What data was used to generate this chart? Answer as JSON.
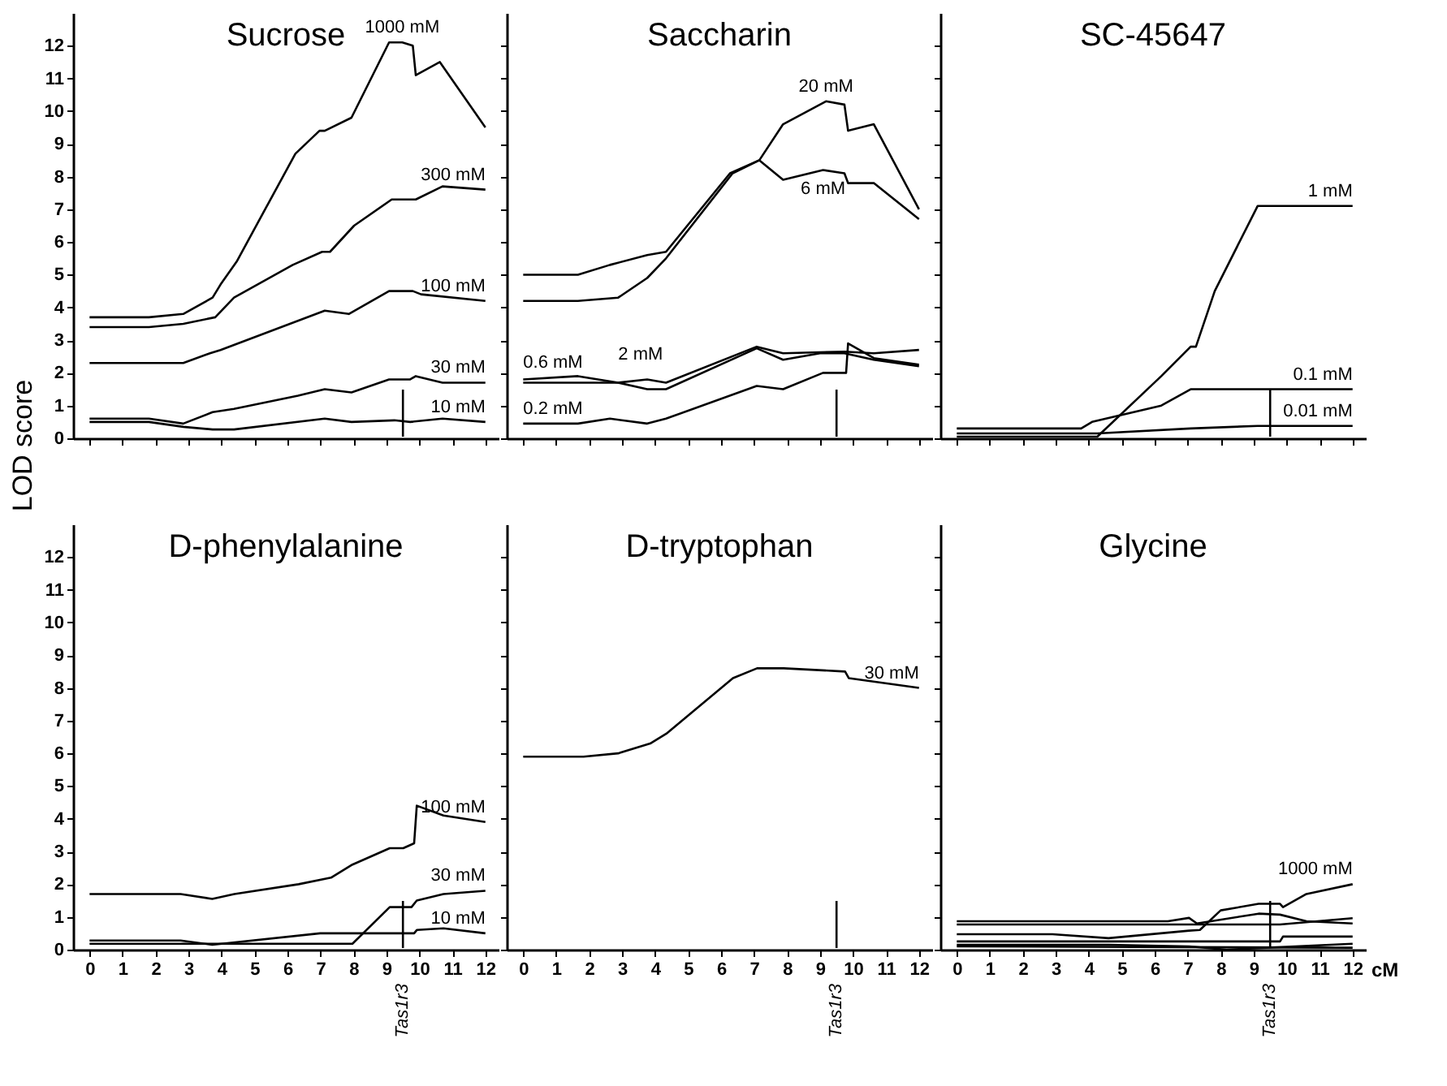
{
  "chart_data": [
    {
      "type": "line",
      "title": "Sucrose",
      "ylabel": "LOD score",
      "legend": "right",
      "ref_lines": [
        {
          "axis": "x",
          "value": 9.5
        }
      ],
      "xlim": [
        -0.5,
        12.4
      ],
      "ylim": [
        0,
        13
      ],
      "xticks": [
        0,
        1,
        2,
        3,
        4,
        5,
        6,
        7,
        8,
        9,
        10,
        11,
        12
      ],
      "yticks": [
        0,
        1,
        2,
        3,
        4,
        5,
        6,
        7,
        8,
        9,
        10,
        11,
        12
      ],
      "tick_labels": "y",
      "series": [
        {
          "name": "1000 mM",
          "color": "#000000",
          "x": [
            0,
            1.8,
            2.84,
            3.73,
            3.97,
            4.46,
            5.43,
            6.24,
            6.97,
            7.13,
            7.94,
            9.08,
            9.48,
            9.8,
            9.89,
            10.62,
            12
          ],
          "values": [
            3.7,
            3.7,
            3.8,
            4.3,
            4.7,
            5.4,
            7.2,
            8.7,
            9.4,
            9.4,
            9.8,
            12.1,
            12.1,
            12.0,
            11.1,
            11.5,
            9.5
          ]
        },
        {
          "name": "300 mM",
          "color": "#000000",
          "x": [
            0,
            1.8,
            2.84,
            3.81,
            4.38,
            6.16,
            7.05,
            7.29,
            8.02,
            9.16,
            9.89,
            10.7,
            12
          ],
          "values": [
            3.4,
            3.4,
            3.5,
            3.7,
            4.3,
            5.3,
            5.7,
            5.7,
            6.5,
            7.3,
            7.3,
            7.7,
            7.6
          ]
        },
        {
          "name": "100 mM",
          "color": "#000000",
          "x": [
            0,
            2.84,
            3.65,
            3.97,
            7.13,
            7.86,
            9.08,
            9.8,
            10.05,
            12
          ],
          "values": [
            2.3,
            2.3,
            2.6,
            2.7,
            3.9,
            3.8,
            4.5,
            4.5,
            4.4,
            4.2
          ]
        },
        {
          "name": "30 mM",
          "color": "#000000",
          "x": [
            0,
            1.8,
            2.84,
            3.73,
            4.38,
            6.32,
            7.13,
            7.94,
            9.08,
            9.72,
            9.89,
            10.7,
            12
          ],
          "values": [
            0.6,
            0.6,
            0.45,
            0.8,
            0.9,
            1.3,
            1.5,
            1.4,
            1.8,
            1.8,
            1.9,
            1.7,
            1.7
          ]
        },
        {
          "name": "10 mM",
          "color": "#000000",
          "x": [
            0,
            1.8,
            2.84,
            3.73,
            4.38,
            7.13,
            7.94,
            9.24,
            9.72,
            10.7,
            12
          ],
          "values": [
            0.5,
            0.5,
            0.35,
            0.27,
            0.27,
            0.6,
            0.5,
            0.55,
            0.5,
            0.6,
            0.5
          ]
        }
      ]
    },
    {
      "type": "line",
      "title": "Saccharin",
      "ref_lines": [
        {
          "axis": "x",
          "value": 9.5
        }
      ],
      "xlim": [
        -0.5,
        12.4
      ],
      "ylim": [
        0,
        13
      ],
      "xticks": [
        0,
        1,
        2,
        3,
        4,
        5,
        6,
        7,
        8,
        9,
        10,
        11,
        12
      ],
      "yticks": [
        0,
        1,
        2,
        3,
        4,
        5,
        6,
        7,
        8,
        9,
        10,
        11,
        12
      ],
      "tick_labels": false,
      "series": [
        {
          "name": "20 mM",
          "color": "#000000",
          "x": [
            0,
            1.66,
            2.63,
            3.76,
            4.33,
            6.27,
            7.16,
            7.88,
            9.18,
            9.74,
            9.85,
            10.63,
            12
          ],
          "values": [
            5.0,
            5.0,
            5.3,
            5.6,
            5.7,
            8.1,
            8.5,
            9.6,
            10.3,
            10.2,
            9.4,
            9.6,
            7.0
          ]
        },
        {
          "name": "6 mM",
          "color": "#000000",
          "x": [
            0,
            1.66,
            2.88,
            3.76,
            4.33,
            6.35,
            7.16,
            7.88,
            9.09,
            9.74,
            9.85,
            10.63,
            12
          ],
          "values": [
            4.2,
            4.2,
            4.3,
            4.9,
            5.5,
            8.1,
            8.5,
            7.9,
            8.2,
            8.1,
            7.8,
            7.8,
            6.7
          ]
        },
        {
          "name": "0.6 mM",
          "color": "#000000",
          "x": [
            0,
            1.66,
            2.88,
            3.76,
            4.33,
            7.08,
            7.88,
            9.74,
            10.63,
            12
          ],
          "values": [
            1.8,
            1.9,
            1.7,
            1.8,
            1.7,
            2.8,
            2.6,
            2.65,
            2.6,
            2.7
          ]
        },
        {
          "name": "2 mM",
          "color": "#000000",
          "x": [
            0,
            2.88,
            3.76,
            4.33,
            7.08,
            7.88,
            9.0,
            9.74,
            10.63,
            12
          ],
          "values": [
            1.7,
            1.7,
            1.5,
            1.5,
            2.75,
            2.4,
            2.6,
            2.6,
            2.4,
            2.2
          ]
        },
        {
          "name": "0.2 mM",
          "color": "#000000",
          "x": [
            0,
            1.66,
            2.63,
            3.76,
            4.33,
            7.08,
            7.88,
            9.09,
            9.79,
            9.85,
            10.63,
            12
          ],
          "values": [
            0.45,
            0.45,
            0.6,
            0.45,
            0.6,
            1.6,
            1.5,
            2.0,
            2.0,
            2.9,
            2.45,
            2.25
          ]
        }
      ]
    },
    {
      "type": "line",
      "title": "SC-45647",
      "ref_lines": [
        {
          "axis": "x",
          "value": 9.5
        }
      ],
      "xlim": [
        -0.5,
        12.4
      ],
      "ylim": [
        0,
        13
      ],
      "xticks": [
        0,
        1,
        2,
        3,
        4,
        5,
        6,
        7,
        8,
        9,
        10,
        11,
        12
      ],
      "yticks": [
        0,
        1,
        2,
        3,
        4,
        5,
        6,
        7,
        8,
        9,
        10,
        11,
        12
      ],
      "tick_labels": false,
      "series": [
        {
          "name": "1 mM",
          "color": "#000000",
          "x": [
            0,
            4.26,
            6.2,
            7.09,
            7.25,
            7.82,
            9.12,
            12
          ],
          "values": [
            0.05,
            0.05,
            1.9,
            2.8,
            2.8,
            4.5,
            7.1,
            7.1
          ]
        },
        {
          "name": "0.1 mM",
          "color": "#000000",
          "x": [
            0,
            3.77,
            4.1,
            6.2,
            7.09,
            12
          ],
          "values": [
            0.3,
            0.3,
            0.5,
            1.0,
            1.5,
            1.5
          ]
        },
        {
          "name": "0.01 mM",
          "color": "#000000",
          "x": [
            0,
            4.26,
            7.09,
            9.12,
            12
          ],
          "values": [
            0.15,
            0.15,
            0.3,
            0.38,
            0.38
          ]
        }
      ]
    },
    {
      "type": "line",
      "title": "D-phenylalanine",
      "legend": "right",
      "xlim": [
        -0.5,
        12.4
      ],
      "ylim": [
        0,
        13
      ],
      "xticks": [
        0,
        1,
        2,
        3,
        4,
        5,
        6,
        7,
        8,
        9,
        10,
        11,
        12
      ],
      "yticks": [
        0,
        1,
        2,
        3,
        4,
        5,
        6,
        7,
        8,
        9,
        10,
        11,
        12
      ],
      "series": [
        {
          "name": "100 mM",
          "color": "#000000",
          "x": [
            0,
            2.76,
            3.72,
            4.39,
            6.34,
            7.32,
            7.97,
            9.1,
            9.51,
            9.84,
            9.92,
            10.73,
            12
          ],
          "values": [
            1.7,
            1.7,
            1.55,
            1.7,
            2.0,
            2.2,
            2.6,
            3.1,
            3.1,
            3.25,
            4.4,
            4.1,
            3.9
          ]
        },
        {
          "name": "30 mM",
          "color": "#000000",
          "x": [
            0,
            7.97,
            9.1,
            9.76,
            9.92,
            10.73,
            12
          ],
          "values": [
            0.18,
            0.18,
            1.3,
            1.3,
            1.5,
            1.7,
            1.8
          ]
        },
        {
          "name": "10 mM",
          "color": "#000000",
          "x": [
            0,
            2.76,
            3.72,
            6.99,
            7.97,
            9.27,
            9.84,
            9.92,
            10.73,
            12
          ],
          "values": [
            0.28,
            0.28,
            0.15,
            0.5,
            0.5,
            0.5,
            0.5,
            0.6,
            0.65,
            0.5
          ]
        }
      ],
      "ref_lines": [
        {
          "axis": "x",
          "value": 9.5,
          "label": "Tas1r3"
        }
      ]
    },
    {
      "type": "line",
      "title": "D-tryptophan",
      "xlim": [
        -0.5,
        12.4
      ],
      "ylim": [
        0,
        13
      ],
      "xticks": [
        0,
        1,
        2,
        3,
        4,
        5,
        6,
        7,
        8,
        9,
        10,
        11,
        12
      ],
      "yticks": [
        0,
        1,
        2,
        3,
        4,
        5,
        6,
        7,
        8,
        9,
        10,
        11,
        12
      ],
      "tick_labels": "x",
      "series": [
        {
          "name": "30 mM",
          "color": "#000000",
          "x": [
            0,
            1.83,
            2.88,
            3.85,
            4.34,
            6.36,
            7.09,
            7.9,
            9.76,
            9.87,
            12
          ],
          "values": [
            5.9,
            5.9,
            6.0,
            6.3,
            6.6,
            8.3,
            8.6,
            8.6,
            8.5,
            8.3,
            8.0
          ]
        }
      ],
      "ref_lines": [
        {
          "axis": "x",
          "value": 9.5,
          "label": "Tas1r3"
        }
      ]
    },
    {
      "type": "line",
      "title": "Glycine",
      "xlabel": "cM",
      "xlim": [
        -0.5,
        12.4
      ],
      "ylim": [
        0,
        13
      ],
      "xticks": [
        0,
        1,
        2,
        3,
        4,
        5,
        6,
        7,
        8,
        9,
        10,
        11,
        12
      ],
      "yticks": [
        0,
        1,
        2,
        3,
        4,
        5,
        6,
        7,
        8,
        9,
        10,
        11,
        12
      ],
      "tick_labels": "x",
      "series": [
        {
          "name": "1000 mM",
          "color": "#000000",
          "x": [
            0,
            2.9,
            4.6,
            7.04,
            7.37,
            8.0,
            9.15,
            9.8,
            9.89,
            10.6,
            12
          ],
          "values": [
            0.47,
            0.47,
            0.35,
            0.58,
            0.6,
            1.2,
            1.4,
            1.4,
            1.3,
            1.7,
            2.0
          ]
        },
        {
          "color": "#000000",
          "x": [
            0,
            6.4,
            7.04,
            7.28,
            9.15,
            9.8,
            10.6,
            12
          ],
          "values": [
            0.87,
            0.87,
            0.97,
            0.8,
            1.1,
            1.07,
            0.87,
            0.8
          ]
        },
        {
          "color": "#000000",
          "x": [
            0,
            9.8,
            12
          ],
          "values": [
            0.77,
            0.77,
            0.96
          ]
        },
        {
          "color": "#000000",
          "x": [
            0,
            9.8,
            9.89,
            12
          ],
          "values": [
            0.25,
            0.25,
            0.4,
            0.4
          ]
        },
        {
          "color": "#000000",
          "x": [
            0,
            4.6,
            7.04,
            8.18,
            12
          ],
          "values": [
            0.15,
            0.15,
            0.1,
            0.0,
            0.18
          ]
        },
        {
          "color": "#000000",
          "x": [
            0,
            12
          ],
          "values": [
            0.1,
            0.06
          ]
        }
      ],
      "ref_lines": [
        {
          "axis": "x",
          "value": 9.5,
          "label": "Tas1r3"
        }
      ]
    }
  ]
}
